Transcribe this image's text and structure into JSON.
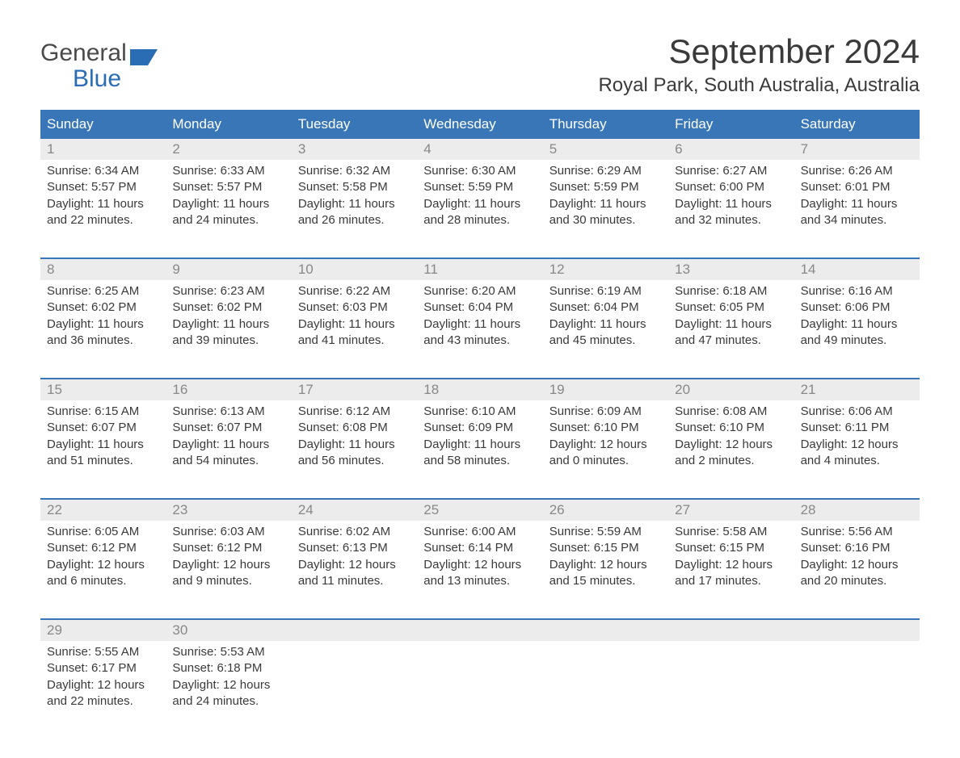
{
  "brand": {
    "top": "General",
    "bottom": "Blue",
    "flag_color": "#2a6db5"
  },
  "title": "September 2024",
  "location": "Royal Park, South Australia, Australia",
  "colors": {
    "header_bg": "#3876b8",
    "header_text": "#ffffff",
    "daynum_bg": "#ececec",
    "daynum_text": "#888888",
    "body_text": "#3a3a3a",
    "week_border": "#3876b8",
    "background": "#ffffff",
    "brand_blue": "#2a6db5"
  },
  "typography": {
    "title_fontsize": 42,
    "location_fontsize": 24,
    "weekday_fontsize": 17,
    "daynum_fontsize": 17,
    "details_fontsize": 15,
    "logo_fontsize": 30
  },
  "layout": {
    "columns": 7,
    "rows": 5
  },
  "weekdays": [
    "Sunday",
    "Monday",
    "Tuesday",
    "Wednesday",
    "Thursday",
    "Friday",
    "Saturday"
  ],
  "weeks": [
    {
      "days": [
        {
          "num": "1",
          "sunrise": "Sunrise: 6:34 AM",
          "sunset": "Sunset: 5:57 PM",
          "daylight1": "Daylight: 11 hours",
          "daylight2": "and 22 minutes."
        },
        {
          "num": "2",
          "sunrise": "Sunrise: 6:33 AM",
          "sunset": "Sunset: 5:57 PM",
          "daylight1": "Daylight: 11 hours",
          "daylight2": "and 24 minutes."
        },
        {
          "num": "3",
          "sunrise": "Sunrise: 6:32 AM",
          "sunset": "Sunset: 5:58 PM",
          "daylight1": "Daylight: 11 hours",
          "daylight2": "and 26 minutes."
        },
        {
          "num": "4",
          "sunrise": "Sunrise: 6:30 AM",
          "sunset": "Sunset: 5:59 PM",
          "daylight1": "Daylight: 11 hours",
          "daylight2": "and 28 minutes."
        },
        {
          "num": "5",
          "sunrise": "Sunrise: 6:29 AM",
          "sunset": "Sunset: 5:59 PM",
          "daylight1": "Daylight: 11 hours",
          "daylight2": "and 30 minutes."
        },
        {
          "num": "6",
          "sunrise": "Sunrise: 6:27 AM",
          "sunset": "Sunset: 6:00 PM",
          "daylight1": "Daylight: 11 hours",
          "daylight2": "and 32 minutes."
        },
        {
          "num": "7",
          "sunrise": "Sunrise: 6:26 AM",
          "sunset": "Sunset: 6:01 PM",
          "daylight1": "Daylight: 11 hours",
          "daylight2": "and 34 minutes."
        }
      ]
    },
    {
      "days": [
        {
          "num": "8",
          "sunrise": "Sunrise: 6:25 AM",
          "sunset": "Sunset: 6:02 PM",
          "daylight1": "Daylight: 11 hours",
          "daylight2": "and 36 minutes."
        },
        {
          "num": "9",
          "sunrise": "Sunrise: 6:23 AM",
          "sunset": "Sunset: 6:02 PM",
          "daylight1": "Daylight: 11 hours",
          "daylight2": "and 39 minutes."
        },
        {
          "num": "10",
          "sunrise": "Sunrise: 6:22 AM",
          "sunset": "Sunset: 6:03 PM",
          "daylight1": "Daylight: 11 hours",
          "daylight2": "and 41 minutes."
        },
        {
          "num": "11",
          "sunrise": "Sunrise: 6:20 AM",
          "sunset": "Sunset: 6:04 PM",
          "daylight1": "Daylight: 11 hours",
          "daylight2": "and 43 minutes."
        },
        {
          "num": "12",
          "sunrise": "Sunrise: 6:19 AM",
          "sunset": "Sunset: 6:04 PM",
          "daylight1": "Daylight: 11 hours",
          "daylight2": "and 45 minutes."
        },
        {
          "num": "13",
          "sunrise": "Sunrise: 6:18 AM",
          "sunset": "Sunset: 6:05 PM",
          "daylight1": "Daylight: 11 hours",
          "daylight2": "and 47 minutes."
        },
        {
          "num": "14",
          "sunrise": "Sunrise: 6:16 AM",
          "sunset": "Sunset: 6:06 PM",
          "daylight1": "Daylight: 11 hours",
          "daylight2": "and 49 minutes."
        }
      ]
    },
    {
      "days": [
        {
          "num": "15",
          "sunrise": "Sunrise: 6:15 AM",
          "sunset": "Sunset: 6:07 PM",
          "daylight1": "Daylight: 11 hours",
          "daylight2": "and 51 minutes."
        },
        {
          "num": "16",
          "sunrise": "Sunrise: 6:13 AM",
          "sunset": "Sunset: 6:07 PM",
          "daylight1": "Daylight: 11 hours",
          "daylight2": "and 54 minutes."
        },
        {
          "num": "17",
          "sunrise": "Sunrise: 6:12 AM",
          "sunset": "Sunset: 6:08 PM",
          "daylight1": "Daylight: 11 hours",
          "daylight2": "and 56 minutes."
        },
        {
          "num": "18",
          "sunrise": "Sunrise: 6:10 AM",
          "sunset": "Sunset: 6:09 PM",
          "daylight1": "Daylight: 11 hours",
          "daylight2": "and 58 minutes."
        },
        {
          "num": "19",
          "sunrise": "Sunrise: 6:09 AM",
          "sunset": "Sunset: 6:10 PM",
          "daylight1": "Daylight: 12 hours",
          "daylight2": "and 0 minutes."
        },
        {
          "num": "20",
          "sunrise": "Sunrise: 6:08 AM",
          "sunset": "Sunset: 6:10 PM",
          "daylight1": "Daylight: 12 hours",
          "daylight2": "and 2 minutes."
        },
        {
          "num": "21",
          "sunrise": "Sunrise: 6:06 AM",
          "sunset": "Sunset: 6:11 PM",
          "daylight1": "Daylight: 12 hours",
          "daylight2": "and 4 minutes."
        }
      ]
    },
    {
      "days": [
        {
          "num": "22",
          "sunrise": "Sunrise: 6:05 AM",
          "sunset": "Sunset: 6:12 PM",
          "daylight1": "Daylight: 12 hours",
          "daylight2": "and 6 minutes."
        },
        {
          "num": "23",
          "sunrise": "Sunrise: 6:03 AM",
          "sunset": "Sunset: 6:12 PM",
          "daylight1": "Daylight: 12 hours",
          "daylight2": "and 9 minutes."
        },
        {
          "num": "24",
          "sunrise": "Sunrise: 6:02 AM",
          "sunset": "Sunset: 6:13 PM",
          "daylight1": "Daylight: 12 hours",
          "daylight2": "and 11 minutes."
        },
        {
          "num": "25",
          "sunrise": "Sunrise: 6:00 AM",
          "sunset": "Sunset: 6:14 PM",
          "daylight1": "Daylight: 12 hours",
          "daylight2": "and 13 minutes."
        },
        {
          "num": "26",
          "sunrise": "Sunrise: 5:59 AM",
          "sunset": "Sunset: 6:15 PM",
          "daylight1": "Daylight: 12 hours",
          "daylight2": "and 15 minutes."
        },
        {
          "num": "27",
          "sunrise": "Sunrise: 5:58 AM",
          "sunset": "Sunset: 6:15 PM",
          "daylight1": "Daylight: 12 hours",
          "daylight2": "and 17 minutes."
        },
        {
          "num": "28",
          "sunrise": "Sunrise: 5:56 AM",
          "sunset": "Sunset: 6:16 PM",
          "daylight1": "Daylight: 12 hours",
          "daylight2": "and 20 minutes."
        }
      ]
    },
    {
      "days": [
        {
          "num": "29",
          "sunrise": "Sunrise: 5:55 AM",
          "sunset": "Sunset: 6:17 PM",
          "daylight1": "Daylight: 12 hours",
          "daylight2": "and 22 minutes."
        },
        {
          "num": "30",
          "sunrise": "Sunrise: 5:53 AM",
          "sunset": "Sunset: 6:18 PM",
          "daylight1": "Daylight: 12 hours",
          "daylight2": "and 24 minutes."
        },
        {
          "num": "",
          "sunrise": "",
          "sunset": "",
          "daylight1": "",
          "daylight2": ""
        },
        {
          "num": "",
          "sunrise": "",
          "sunset": "",
          "daylight1": "",
          "daylight2": ""
        },
        {
          "num": "",
          "sunrise": "",
          "sunset": "",
          "daylight1": "",
          "daylight2": ""
        },
        {
          "num": "",
          "sunrise": "",
          "sunset": "",
          "daylight1": "",
          "daylight2": ""
        },
        {
          "num": "",
          "sunrise": "",
          "sunset": "",
          "daylight1": "",
          "daylight2": ""
        }
      ]
    }
  ]
}
